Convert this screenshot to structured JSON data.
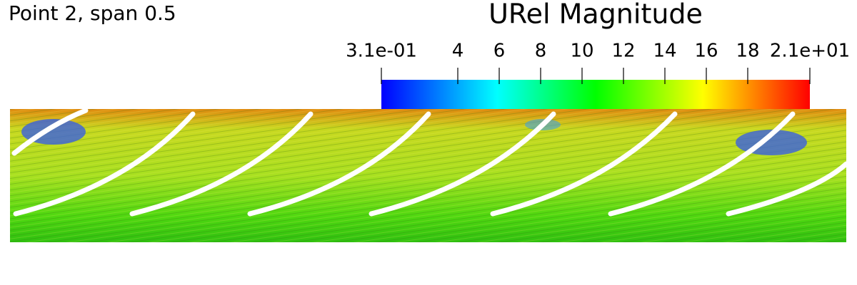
{
  "label": "Point 2, span 0.5",
  "colorbar": {
    "title": "URel Magnitude",
    "range": [
      0.31,
      21
    ],
    "ticks": [
      {
        "value": 0.31,
        "label": "3.1e-01"
      },
      4,
      6,
      8,
      10,
      12,
      14,
      16,
      18,
      {
        "value": 21,
        "label": "2.1e+01"
      }
    ]
  }
}
